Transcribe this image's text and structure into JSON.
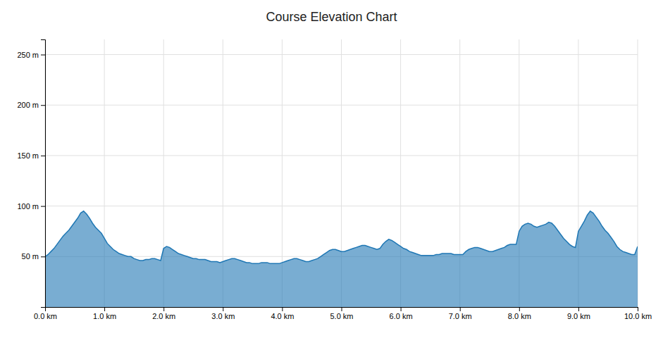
{
  "chart_data": {
    "type": "area",
    "title": "Course Elevation Chart",
    "x": [
      0.0,
      0.05,
      0.1,
      0.15,
      0.2,
      0.25,
      0.3,
      0.35,
      0.4,
      0.45,
      0.5,
      0.55,
      0.6,
      0.65,
      0.7,
      0.75,
      0.8,
      0.85,
      0.9,
      0.95,
      1.0,
      1.05,
      1.1,
      1.15,
      1.2,
      1.25,
      1.3,
      1.35,
      1.4,
      1.45,
      1.5,
      1.55,
      1.6,
      1.65,
      1.7,
      1.75,
      1.8,
      1.85,
      1.9,
      1.95,
      2.0,
      2.05,
      2.1,
      2.15,
      2.2,
      2.25,
      2.3,
      2.35,
      2.4,
      2.45,
      2.5,
      2.55,
      2.6,
      2.65,
      2.7,
      2.75,
      2.8,
      2.85,
      2.9,
      2.95,
      3.0,
      3.05,
      3.1,
      3.15,
      3.2,
      3.25,
      3.3,
      3.35,
      3.4,
      3.45,
      3.5,
      3.55,
      3.6,
      3.65,
      3.7,
      3.75,
      3.8,
      3.85,
      3.9,
      3.95,
      4.0,
      4.05,
      4.1,
      4.15,
      4.2,
      4.25,
      4.3,
      4.35,
      4.4,
      4.45,
      4.5,
      4.55,
      4.6,
      4.65,
      4.7,
      4.75,
      4.8,
      4.85,
      4.9,
      4.95,
      5.0,
      5.05,
      5.1,
      5.15,
      5.2,
      5.25,
      5.3,
      5.35,
      5.4,
      5.45,
      5.5,
      5.55,
      5.6,
      5.65,
      5.7,
      5.75,
      5.8,
      5.85,
      5.9,
      5.95,
      6.0,
      6.05,
      6.1,
      6.15,
      6.2,
      6.25,
      6.3,
      6.35,
      6.4,
      6.45,
      6.5,
      6.55,
      6.6,
      6.65,
      6.7,
      6.75,
      6.8,
      6.85,
      6.9,
      6.95,
      7.0,
      7.05,
      7.1,
      7.15,
      7.2,
      7.25,
      7.3,
      7.35,
      7.4,
      7.45,
      7.5,
      7.55,
      7.6,
      7.65,
      7.7,
      7.75,
      7.8,
      7.85,
      7.9,
      7.95,
      8.0,
      8.05,
      8.1,
      8.15,
      8.2,
      8.25,
      8.3,
      8.35,
      8.4,
      8.45,
      8.5,
      8.55,
      8.6,
      8.65,
      8.7,
      8.75,
      8.8,
      8.85,
      8.9,
      8.95,
      9.0,
      9.05,
      9.1,
      9.15,
      9.2,
      9.25,
      9.3,
      9.35,
      9.4,
      9.45,
      9.5,
      9.55,
      9.6,
      9.65,
      9.7,
      9.75,
      9.8,
      9.85,
      9.9,
      9.95,
      10.0
    ],
    "values": [
      50,
      52,
      55,
      58,
      62,
      66,
      70,
      73,
      76,
      80,
      84,
      88,
      93,
      95,
      92,
      88,
      83,
      79,
      76,
      73,
      68,
      63,
      60,
      57,
      55,
      53,
      52,
      51,
      50,
      50,
      48,
      47,
      46,
      46,
      47,
      47,
      48,
      48,
      47,
      46,
      58,
      60,
      59,
      57,
      55,
      53,
      52,
      51,
      50,
      49,
      48,
      48,
      47,
      47,
      47,
      46,
      45,
      45,
      45,
      44,
      45,
      46,
      47,
      48,
      48,
      47,
      46,
      45,
      44,
      44,
      43,
      43,
      43,
      44,
      44,
      44,
      43,
      43,
      43,
      43,
      44,
      45,
      46,
      47,
      48,
      48,
      47,
      46,
      45,
      45,
      46,
      47,
      48,
      50,
      52,
      54,
      56,
      57,
      57,
      56,
      55,
      55,
      56,
      57,
      58,
      59,
      60,
      61,
      61,
      60,
      59,
      58,
      57,
      58,
      62,
      65,
      67,
      66,
      64,
      62,
      60,
      58,
      57,
      55,
      54,
      53,
      52,
      51,
      51,
      51,
      51,
      51,
      52,
      52,
      53,
      53,
      53,
      53,
      52,
      52,
      52,
      52,
      55,
      57,
      58,
      59,
      59,
      58,
      57,
      56,
      55,
      55,
      56,
      57,
      58,
      59,
      61,
      62,
      62,
      62,
      75,
      80,
      82,
      83,
      82,
      80,
      79,
      80,
      81,
      82,
      84,
      83,
      80,
      76,
      72,
      68,
      65,
      62,
      60,
      59,
      75,
      80,
      85,
      91,
      95,
      93,
      89,
      85,
      80,
      76,
      73,
      69,
      65,
      60,
      57,
      55,
      54,
      53,
      52,
      52,
      60
    ],
    "xlim": [
      0,
      10.0
    ],
    "ylim": [
      0,
      265
    ],
    "xticks": [
      {
        "value": 0.0,
        "label": "0.0 km"
      },
      {
        "value": 1.0,
        "label": "1.0 km"
      },
      {
        "value": 2.0,
        "label": "2.0 km"
      },
      {
        "value": 3.0,
        "label": "3.0 km"
      },
      {
        "value": 4.0,
        "label": "4.0 km"
      },
      {
        "value": 5.0,
        "label": "5.0 km"
      },
      {
        "value": 6.0,
        "label": "6.0 km"
      },
      {
        "value": 7.0,
        "label": "7.0 km"
      },
      {
        "value": 8.0,
        "label": "8.0 km"
      },
      {
        "value": 9.0,
        "label": "9.0 km"
      },
      {
        "value": 10.0,
        "label": "10.0 km"
      }
    ],
    "yticks": [
      {
        "value": 50,
        "label": "50 m"
      },
      {
        "value": 100,
        "label": "100 m"
      },
      {
        "value": 150,
        "label": "150 m"
      },
      {
        "value": 200,
        "label": "200 m"
      },
      {
        "value": 250,
        "label": "250 m"
      }
    ],
    "grid": true
  }
}
